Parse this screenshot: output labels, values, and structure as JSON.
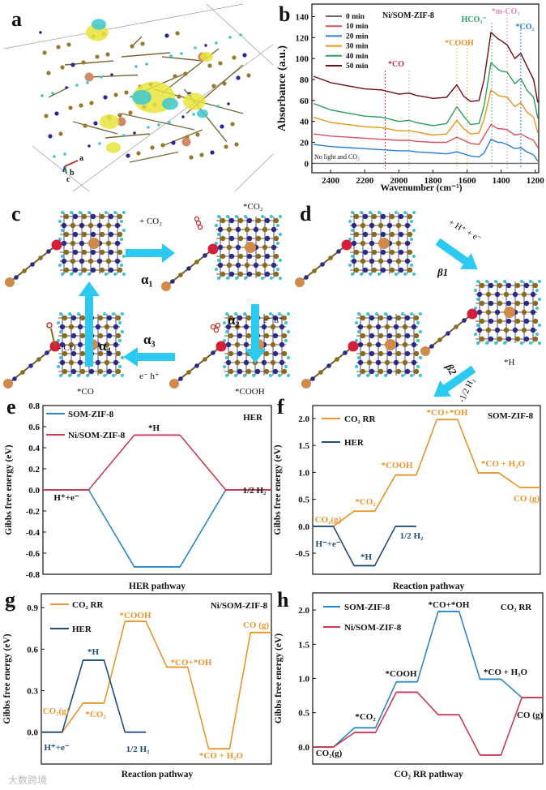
{
  "panel_labels": {
    "a": "a",
    "b": "b",
    "c": "c",
    "d": "d",
    "e": "e",
    "f": "f",
    "g": "g",
    "h": "h"
  },
  "panel_a": {
    "axis_labels": [
      "a",
      "b",
      "c"
    ]
  },
  "panel_c": {
    "step1_reagent": "+ CO₂",
    "step1_label": "α₁",
    "step2_reagent": "e⁻ h⁺",
    "step2_label": "α₂",
    "step3_reagent": "e⁻  h⁺",
    "step3_label": "α₃",
    "step4_reagent": "- CO",
    "step4_label": "α₄",
    "state_co2": "*CO₂",
    "state_cooh": "*COOH",
    "state_co": "*CO"
  },
  "panel_d": {
    "step1_reagent": "+ H⁺ + e⁻",
    "step1_label": "β1",
    "step2_reagent": "-1/2 H₂",
    "step2_label": "β2",
    "state_h": "*H"
  },
  "watermark": "大数跨境",
  "chart_data": [
    {
      "id": "b",
      "type": "line",
      "title": "Ni/SOM-ZIF-8",
      "xlabel": "Wavenumber (cm⁻¹)",
      "ylabel": "Absorbance (a.u.)",
      "xlim": [
        2510,
        1180
      ],
      "ylim": [
        -9,
        152
      ],
      "x_reversed": true,
      "xticks": [
        2400,
        2200,
        2000,
        1800,
        1600,
        1400,
        1200
      ],
      "yticks": [
        0,
        20,
        40,
        60,
        80,
        100,
        120,
        140
      ],
      "legend_position": "top-left",
      "x": [
        2500,
        2400,
        2300,
        2200,
        2100,
        2000,
        1940,
        1900,
        1800,
        1720,
        1660,
        1620,
        1580,
        1530,
        1500,
        1460,
        1420,
        1400,
        1365,
        1320,
        1285,
        1250,
        1210,
        1185
      ],
      "series": [
        {
          "name": "0 min",
          "color": "#6b6b6b",
          "values": [
            0,
            0,
            0,
            0,
            0,
            0,
            0,
            0,
            0,
            0,
            0,
            0,
            0,
            0,
            0,
            0,
            0,
            0,
            0,
            0,
            0,
            0,
            0,
            0
          ]
        },
        {
          "name": "10 min",
          "color": "#d9505e",
          "values": [
            28,
            26,
            25,
            24,
            23,
            22,
            22,
            21,
            20,
            20,
            25,
            22,
            19,
            18,
            26,
            37,
            33,
            33,
            32,
            27,
            28,
            25,
            22,
            15
          ]
        },
        {
          "name": "20 min",
          "color": "#2a7fd4",
          "values": [
            18,
            16,
            15,
            14,
            13,
            12,
            12,
            11,
            10,
            9,
            11,
            9,
            7,
            6,
            10,
            23,
            20,
            20,
            18,
            14,
            15,
            11,
            8,
            2
          ]
        },
        {
          "name": "30 min",
          "color": "#e8951e",
          "values": [
            44,
            39,
            37,
            35,
            34,
            31,
            31,
            30,
            27,
            28,
            41,
            33,
            28,
            29,
            42,
            70,
            65,
            64,
            63,
            54,
            58,
            49,
            44,
            29
          ]
        },
        {
          "name": "40 min",
          "color": "#2e9e5e",
          "values": [
            57,
            51,
            48,
            45,
            44,
            40,
            41,
            39,
            36,
            38,
            54,
            45,
            37,
            38,
            55,
            96,
            90,
            88,
            87,
            76,
            81,
            70,
            63,
            43
          ]
        },
        {
          "name": "50 min",
          "color": "#6e0f14",
          "values": [
            83,
            77,
            74,
            71,
            70,
            66,
            67,
            65,
            62,
            63,
            75,
            64,
            59,
            60,
            80,
            125,
            119,
            117,
            113,
            100,
            105,
            93,
            80,
            58
          ]
        }
      ],
      "reference_lines": [
        {
          "label": "*CO",
          "x": [
            2080,
            1940
          ],
          "colors": [
            "#c0304a",
            "#e8b090"
          ]
        },
        {
          "label": "*COOH",
          "x": [
            1660,
            1600
          ],
          "colors": [
            "#f0c080",
            "#f0c080"
          ]
        },
        {
          "label": "HCO₃⁻",
          "x": [
            1455
          ],
          "colors": [
            "#5cb87a"
          ]
        },
        {
          "label": "*m-CO₃",
          "x": [
            1365
          ],
          "colors": [
            "#e89ac0"
          ]
        },
        {
          "label": "*CO₂",
          "x": [
            1285
          ],
          "colors": [
            "#2a7fd4"
          ]
        }
      ],
      "annotation": "No light and CO₂"
    },
    {
      "id": "e",
      "type": "line",
      "title": "HER",
      "xlabel": "HER pathway",
      "ylabel": "Gibbs free energy (eV)",
      "xlim": [
        0,
        5
      ],
      "ylim": [
        -0.8,
        0.8
      ],
      "yticks": [
        -0.8,
        -0.6,
        -0.4,
        -0.2,
        0.0,
        0.2,
        0.4,
        0.6,
        0.8
      ],
      "ytick_decimals": 1,
      "legend_position": "top-left",
      "series": [
        {
          "name": "SOM-ZIF-8",
          "color": "#2a86c8",
          "levels": [
            0,
            -0.73,
            0
          ]
        },
        {
          "name": "Ni/SOM-ZIF-8",
          "color": "#c83a55",
          "levels": [
            0,
            0.52,
            0
          ]
        }
      ],
      "annotations": [
        {
          "text": "*H",
          "color": "#111"
        },
        {
          "text": "H⁺+e⁻",
          "color": "#111"
        },
        {
          "text": "1/2 H₂",
          "color": "#111"
        }
      ]
    },
    {
      "id": "f",
      "type": "line",
      "title": "SOM-ZIF-8",
      "xlabel": "Reaction pathway",
      "ylabel": "Gibbs free energy (eV)",
      "xlim": [
        0,
        11
      ],
      "ylim": [
        -0.89,
        2.24
      ],
      "yticks": [
        -0.5,
        0.0,
        0.5,
        1.0,
        1.5,
        2.0
      ],
      "ytick_decimals": 1,
      "legend_position": "top-left",
      "series": [
        {
          "name": "CO₂ RR",
          "color": "#e8952a",
          "levels": [
            0,
            0.28,
            0.95,
            1.98,
            0.99,
            0.72
          ]
        },
        {
          "name": "HER",
          "color": "#1f4e79",
          "levels": [
            0,
            -0.73,
            0
          ]
        }
      ],
      "annotations": [
        {
          "text": "CO₂(g)",
          "color": "#e8952a"
        },
        {
          "text": "*CO₂",
          "color": "#e8952a"
        },
        {
          "text": "*COOH",
          "color": "#e8952a"
        },
        {
          "text": "*CO+*OH",
          "color": "#e8952a"
        },
        {
          "text": "*CO + H₂O",
          "color": "#e8952a"
        },
        {
          "text": "CO (g)",
          "color": "#e8952a"
        },
        {
          "text": "H⁻+e⁻",
          "color": "#1f4e79"
        },
        {
          "text": "*H",
          "color": "#1f4e79"
        },
        {
          "text": "1/2 H₂",
          "color": "#1f4e79"
        }
      ]
    },
    {
      "id": "g",
      "type": "line",
      "title": "Ni/SOM-ZIF-8",
      "xlabel": "Reaction pathway",
      "ylabel": "Gibbs free energy (eV)",
      "xlim": [
        0,
        11
      ],
      "ylim": [
        -0.23,
        1.0
      ],
      "yticks": [
        0.0,
        0.3,
        0.6,
        0.9
      ],
      "ytick_decimals": 1,
      "legend_position": "top-left",
      "series": [
        {
          "name": "CO₂ RR",
          "color": "#e8952a",
          "levels": [
            0,
            0.21,
            0.8,
            0.47,
            -0.12,
            0.72
          ]
        },
        {
          "name": "HER",
          "color": "#1f4e79",
          "levels": [
            0,
            0.52,
            0
          ]
        }
      ],
      "annotations": [
        {
          "text": "*COOH",
          "color": "#e8952a"
        },
        {
          "text": "*H",
          "color": "#1f4e79"
        },
        {
          "text": "*CO+*OH",
          "color": "#e8952a"
        },
        {
          "text": "CO (g)",
          "color": "#e8952a"
        },
        {
          "text": "CO₂(g)",
          "color": "#e8952a"
        },
        {
          "text": "*CO₂",
          "color": "#e8952a"
        },
        {
          "text": "H⁺+e⁻",
          "color": "#1f4e79"
        },
        {
          "text": "1/2 H₂",
          "color": "#1f4e79"
        },
        {
          "text": "*CO + H₂O",
          "color": "#e8952a"
        }
      ]
    },
    {
      "id": "h",
      "type": "line",
      "title": "CO₂ RR",
      "xlabel": "CO₂ RR pathway",
      "ylabel": "Gibbs free energy (eV)",
      "xlim": [
        0,
        11
      ],
      "ylim": [
        -0.25,
        2.25
      ],
      "yticks": [
        0.0,
        0.5,
        1.0,
        1.5,
        2.0
      ],
      "ytick_decimals": 1,
      "legend_position": "top-left",
      "series": [
        {
          "name": "SOM-ZIF-8",
          "color": "#2a86c8",
          "levels": [
            0,
            0.28,
            0.95,
            1.98,
            0.99,
            0.72
          ]
        },
        {
          "name": "Ni/SOM-ZIF-8",
          "color": "#c83a55",
          "levels": [
            0,
            0.21,
            0.8,
            0.47,
            -0.12,
            0.72
          ]
        }
      ],
      "annotations": [
        {
          "text": "*CO+*OH",
          "color": "#111"
        },
        {
          "text": "*COOH",
          "color": "#111"
        },
        {
          "text": "*CO + H₂O",
          "color": "#111"
        },
        {
          "text": "*CO₂",
          "color": "#111"
        },
        {
          "text": "CO (g)",
          "color": "#111"
        },
        {
          "text": "CO₂(g)",
          "color": "#111"
        }
      ]
    }
  ]
}
